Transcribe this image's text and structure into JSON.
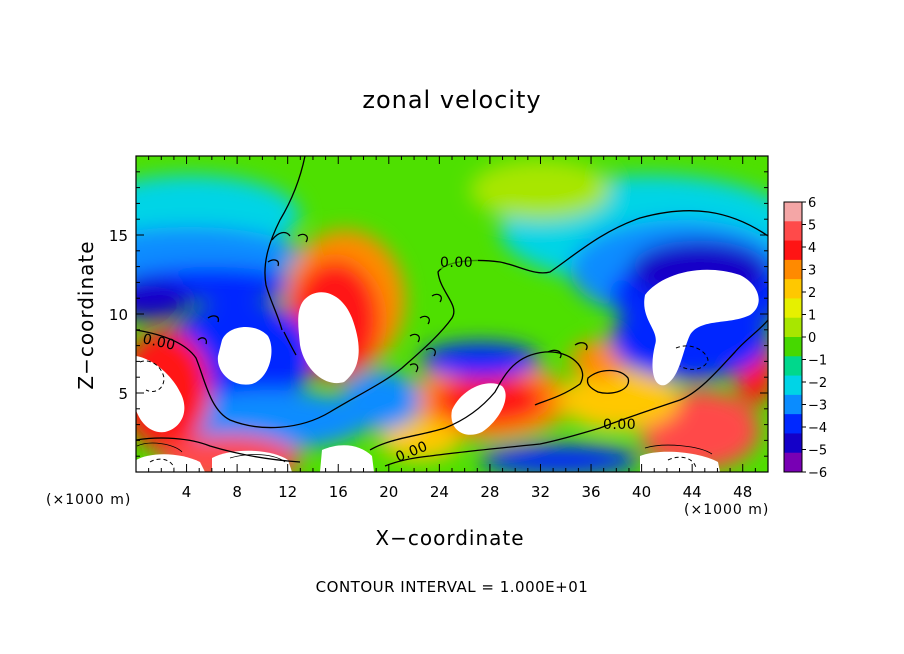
{
  "chart_data": {
    "type": "heatmap",
    "title": "zonal velocity",
    "xlabel": "X−coordinate",
    "ylabel": "Z−coordinate",
    "x_unit": "(×1000 m)",
    "y_unit": "(×1000 m)",
    "xlim": [
      0,
      50
    ],
    "ylim": [
      0,
      20
    ],
    "x_ticks": [
      4,
      8,
      12,
      16,
      20,
      24,
      28,
      32,
      36,
      40,
      44,
      48
    ],
    "y_ticks": [
      5,
      10,
      15
    ],
    "colorbar": {
      "min": -6,
      "max": 6,
      "tick_labels": [
        "6",
        "5",
        "4",
        "3",
        "2",
        "1",
        "0",
        "−1",
        "−2",
        "−3",
        "−4",
        "−5",
        "−6"
      ],
      "colors": [
        "#f4a6a6",
        "#ff4a4a",
        "#ff1414",
        "#ff8a00",
        "#ffc800",
        "#e6f000",
        "#a8e600",
        "#46d800",
        "#00d88c",
        "#00d4e6",
        "#0a8cff",
        "#0028ff",
        "#1400c8",
        "#7800b4"
      ]
    },
    "contour_labels": [
      "0.00",
      "0.00",
      "0.00",
      "0.00"
    ],
    "footer": "CONTOUR INTERVAL = 1.000E+01"
  }
}
